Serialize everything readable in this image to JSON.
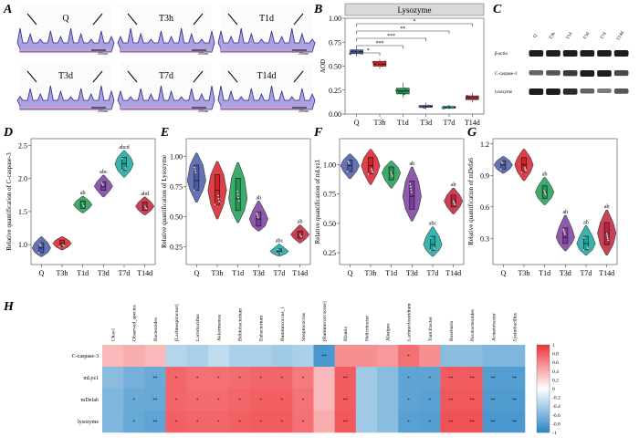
{
  "panels": {
    "A": {
      "letter": "A",
      "labels": [
        "Q",
        "T3h",
        "T1d",
        "T3d",
        "T7d",
        "T14d"
      ],
      "scale_bar": "200um"
    },
    "B": {
      "letter": "B",
      "strip_title": "Lysozyme",
      "ylabel": "AOD",
      "significance": [
        "*",
        "**",
        "***",
        "***",
        "*"
      ]
    },
    "C": {
      "letter": "C",
      "lane_labels": [
        "Q",
        "T3h",
        "T1d",
        "T3d",
        "T7d",
        "T14d"
      ],
      "row_labels": [
        "β-actin",
        "C-caspase-3",
        "lysozyme"
      ]
    },
    "D": {
      "letter": "D",
      "ylabel": "Relative quantification of C-caspase-3"
    },
    "E": {
      "letter": "E",
      "ylabel": "Relative quantification of Lysozyme"
    },
    "F": {
      "letter": "F",
      "ylabel": "Relative quantification of mLyz1"
    },
    "G": {
      "letter": "G",
      "ylabel": "Relative quantification of mDefa6"
    },
    "H": {
      "letter": "H"
    }
  },
  "colors": {
    "groups": [
      "#4a5aa8",
      "#d6202a",
      "#1f9a52",
      "#7a3d9e",
      "#16a6a0",
      "#c0203a"
    ],
    "heat_pos": "#ee3338",
    "heat_neg": "#2a86c6",
    "heat_mid": "#ffffff"
  },
  "chart_data": [
    {
      "id": "B",
      "type": "box",
      "categories": [
        "Q",
        "T3h",
        "T1d",
        "T3d",
        "T7d",
        "T14d"
      ],
      "ylabel": "AOD",
      "ylim": [
        0,
        1.0
      ],
      "ticks": [
        0.0,
        0.25,
        0.5,
        0.75,
        1.0
      ],
      "series": [
        {
          "min": 0.6,
          "q1": 0.63,
          "median": 0.65,
          "q3": 0.67,
          "max": 0.69
        },
        {
          "min": 0.47,
          "q1": 0.5,
          "median": 0.52,
          "q3": 0.55,
          "max": 0.57
        },
        {
          "min": 0.17,
          "q1": 0.21,
          "median": 0.24,
          "q3": 0.27,
          "max": 0.33
        },
        {
          "min": 0.05,
          "q1": 0.07,
          "median": 0.08,
          "q3": 0.09,
          "max": 0.12
        },
        {
          "min": 0.05,
          "q1": 0.06,
          "median": 0.07,
          "q3": 0.08,
          "max": 0.1
        },
        {
          "min": 0.12,
          "q1": 0.15,
          "median": 0.17,
          "q3": 0.19,
          "max": 0.22
        }
      ]
    },
    {
      "id": "D",
      "type": "violin",
      "categories": [
        "Q",
        "T3h",
        "T1d",
        "T3d",
        "T7d",
        "T14d"
      ],
      "ylabel": "Relative quantification of C-caspase-3",
      "ylim": [
        0.7,
        2.6
      ],
      "ticks": [
        1.0,
        1.5,
        2.0,
        2.5
      ],
      "letters": [
        "",
        "",
        "ab",
        "abc",
        "abcd",
        "abd"
      ],
      "series": [
        {
          "min": 0.82,
          "q1": 0.88,
          "median": 0.95,
          "q3": 1.03,
          "max": 1.12
        },
        {
          "min": 0.92,
          "q1": 0.97,
          "median": 1.02,
          "q3": 1.07,
          "max": 1.12
        },
        {
          "min": 1.48,
          "q1": 1.55,
          "median": 1.6,
          "q3": 1.66,
          "max": 1.73
        },
        {
          "min": 1.72,
          "q1": 1.82,
          "median": 1.88,
          "q3": 1.95,
          "max": 2.05
        },
        {
          "min": 2.02,
          "q1": 2.12,
          "median": 2.22,
          "q3": 2.32,
          "max": 2.42
        },
        {
          "min": 1.45,
          "q1": 1.52,
          "median": 1.58,
          "q3": 1.64,
          "max": 1.72
        }
      ]
    },
    {
      "id": "E",
      "type": "violin",
      "categories": [
        "Q",
        "T3h",
        "T1d",
        "T3d",
        "T7d",
        "T14d"
      ],
      "ylabel": "Relative quantification of Lysozyme",
      "ylim": [
        0.1,
        1.15
      ],
      "ticks": [
        0.25,
        0.5,
        0.75,
        1.0
      ],
      "letters": [
        "",
        "",
        "",
        "ab",
        "abc",
        "ab"
      ],
      "series": [
        {
          "min": 0.62,
          "q1": 0.72,
          "median": 0.8,
          "q3": 0.93,
          "max": 1.03
        },
        {
          "min": 0.48,
          "q1": 0.6,
          "median": 0.72,
          "q3": 0.85,
          "max": 0.96
        },
        {
          "min": 0.45,
          "q1": 0.55,
          "median": 0.65,
          "q3": 0.82,
          "max": 0.95
        },
        {
          "min": 0.38,
          "q1": 0.42,
          "median": 0.48,
          "q3": 0.54,
          "max": 0.63
        },
        {
          "min": 0.17,
          "q1": 0.19,
          "median": 0.21,
          "q3": 0.23,
          "max": 0.27
        },
        {
          "min": 0.28,
          "q1": 0.32,
          "median": 0.35,
          "q3": 0.38,
          "max": 0.43
        }
      ]
    },
    {
      "id": "F",
      "type": "violin",
      "categories": [
        "Q",
        "T3h",
        "T1d",
        "T3d",
        "T7d",
        "T14d"
      ],
      "ylabel": "Relative quantification of mLyz1",
      "ylim": [
        0.15,
        1.22
      ],
      "ticks": [
        0.25,
        0.5,
        0.75,
        1.0
      ],
      "letters": [
        "",
        "",
        "",
        "ab",
        "abc",
        "ab"
      ],
      "series": [
        {
          "min": 0.88,
          "q1": 0.94,
          "median": 0.99,
          "q3": 1.04,
          "max": 1.09
        },
        {
          "min": 0.83,
          "q1": 0.92,
          "median": 0.99,
          "q3": 1.06,
          "max": 1.13
        },
        {
          "min": 0.8,
          "q1": 0.87,
          "median": 0.93,
          "q3": 0.98,
          "max": 1.03
        },
        {
          "min": 0.52,
          "q1": 0.62,
          "median": 0.73,
          "q3": 0.86,
          "max": 0.98
        },
        {
          "min": 0.22,
          "q1": 0.27,
          "median": 0.32,
          "q3": 0.39,
          "max": 0.47
        },
        {
          "min": 0.58,
          "q1": 0.64,
          "median": 0.69,
          "q3": 0.74,
          "max": 0.8
        }
      ]
    },
    {
      "id": "G",
      "type": "violin",
      "categories": [
        "Q",
        "T3h",
        "T1d",
        "T3d",
        "T7d",
        "T14d"
      ],
      "ylabel": "Relative quantification of mDefa6",
      "ylim": [
        0.05,
        1.25
      ],
      "ticks": [
        0.3,
        0.6,
        0.9,
        1.2
      ],
      "letters": [
        "",
        "",
        "ab",
        "ab",
        "ab",
        "ab"
      ],
      "series": [
        {
          "min": 0.92,
          "q1": 0.96,
          "median": 1.0,
          "q3": 1.04,
          "max": 1.08
        },
        {
          "min": 0.85,
          "q1": 0.93,
          "median": 1.0,
          "q3": 1.07,
          "max": 1.15
        },
        {
          "min": 0.62,
          "q1": 0.68,
          "median": 0.74,
          "q3": 0.8,
          "max": 0.88
        },
        {
          "min": 0.18,
          "q1": 0.25,
          "median": 0.31,
          "q3": 0.4,
          "max": 0.52
        },
        {
          "min": 0.14,
          "q1": 0.19,
          "median": 0.25,
          "q3": 0.32,
          "max": 0.42
        },
        {
          "min": 0.14,
          "q1": 0.24,
          "median": 0.35,
          "q3": 0.45,
          "max": 0.57
        }
      ]
    },
    {
      "id": "H",
      "type": "heatmap",
      "columns": [
        "Chao1",
        "Observed_species",
        "Bacteroides",
        "[Lachnospiraceae]",
        "Lactobacillus",
        "Akkermansia",
        "Bifidobacterium",
        "Eubacterium",
        "Ruminococcus_1",
        "Streptococcus",
        "[Ruminococcaceae]",
        "Blautia",
        "Helicobacter",
        "Alistipes",
        "Lachnoclostridium",
        "Turicibacter",
        "Roseburia",
        "Parabacteroides",
        "Acinetobacter",
        "Lysinibacillus"
      ],
      "rows": [
        "C-caspase-3",
        "mLyz1",
        "mDefa6",
        "lysozyme"
      ],
      "values": [
        [
          0.35,
          0.4,
          0.35,
          -0.35,
          -0.4,
          -0.3,
          -0.4,
          -0.4,
          -0.45,
          -0.4,
          -0.85,
          0.55,
          0.55,
          0.5,
          0.7,
          0.55,
          -0.55,
          -0.55,
          -0.6,
          -0.6
        ],
        [
          -0.55,
          -0.65,
          -0.7,
          0.75,
          0.7,
          0.7,
          0.72,
          0.75,
          0.75,
          0.65,
          0.35,
          0.8,
          -0.45,
          -0.55,
          -0.75,
          -0.75,
          0.8,
          0.8,
          -0.8,
          -0.8
        ],
        [
          -0.6,
          -0.7,
          -0.72,
          0.75,
          0.72,
          0.72,
          0.75,
          0.78,
          0.78,
          0.68,
          0.35,
          0.8,
          -0.45,
          -0.55,
          -0.75,
          -0.78,
          0.82,
          0.82,
          -0.82,
          -0.82
        ],
        [
          -0.6,
          -0.72,
          -0.75,
          0.78,
          0.75,
          0.75,
          0.78,
          0.8,
          0.8,
          0.7,
          0.4,
          0.82,
          -0.45,
          -0.55,
          -0.78,
          -0.8,
          0.85,
          0.85,
          -0.85,
          -0.85
        ]
      ],
      "stars": [
        [
          "",
          "",
          "",
          "",
          "",
          "",
          "",
          "",
          "",
          "",
          "**",
          "",
          "",
          "",
          "*",
          "",
          "",
          "",
          "",
          ""
        ],
        [
          "",
          "",
          "**",
          "*",
          "*",
          "*",
          "*",
          "*",
          "*",
          "*",
          "",
          "**",
          "",
          "",
          "*",
          "*",
          "**",
          "**",
          "**",
          "**"
        ],
        [
          "",
          "*",
          "**",
          "*",
          "*",
          "*",
          "*",
          "*",
          "*",
          "*",
          "",
          "**",
          "",
          "",
          "*",
          "*",
          "**",
          "**",
          "**",
          "**"
        ],
        [
          "",
          "*",
          "**",
          "*",
          "*",
          "*",
          "*",
          "*",
          "*",
          "*",
          "",
          "**",
          "",
          "",
          "*",
          "*",
          "**",
          "**",
          "**",
          "**"
        ]
      ],
      "colorbar_ticks": [
        "1",
        "0.8",
        "0.6",
        "0.4",
        "0.2",
        "0",
        "-0.2",
        "-0.4",
        "-0.6",
        "-0.8",
        "-1"
      ]
    }
  ]
}
